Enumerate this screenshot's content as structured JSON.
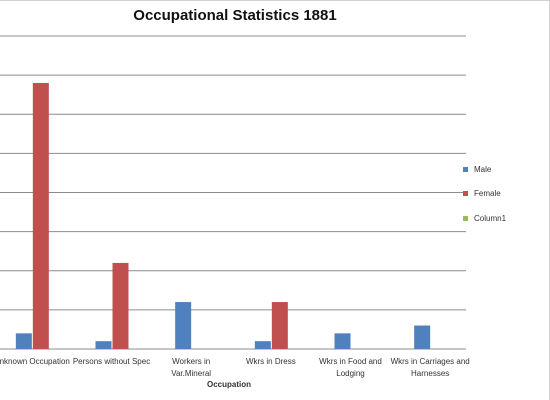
{
  "chart_data": {
    "type": "bar",
    "title": "Occupational Statistics 1881",
    "xlabel": "Occupation",
    "ylabel": "",
    "ylim": [
      0,
      8
    ],
    "grid": true,
    "legend_position": "right",
    "categories": [
      [
        "Unknown Occupation"
      ],
      [
        "Persons without Spec"
      ],
      [
        "Workers in",
        "Var.Mineral"
      ],
      [
        "Wkrs in Dress"
      ],
      [
        "Wkrs in Food and",
        "Lodging"
      ],
      [
        "Wkrs in Carriages and",
        "Harnesses"
      ]
    ],
    "series": [
      {
        "name": "Male",
        "color": "#4f81bd",
        "values": [
          0.4,
          0.2,
          1.2,
          0.2,
          0.4,
          0.6
        ]
      },
      {
        "name": "Female",
        "color": "#c0504d",
        "values": [
          6.8,
          2.2,
          0,
          1.2,
          0,
          0
        ]
      },
      {
        "name": "Column1",
        "color": "#9bbb59",
        "values": [
          0,
          0,
          0,
          0,
          0,
          0
        ]
      }
    ]
  }
}
